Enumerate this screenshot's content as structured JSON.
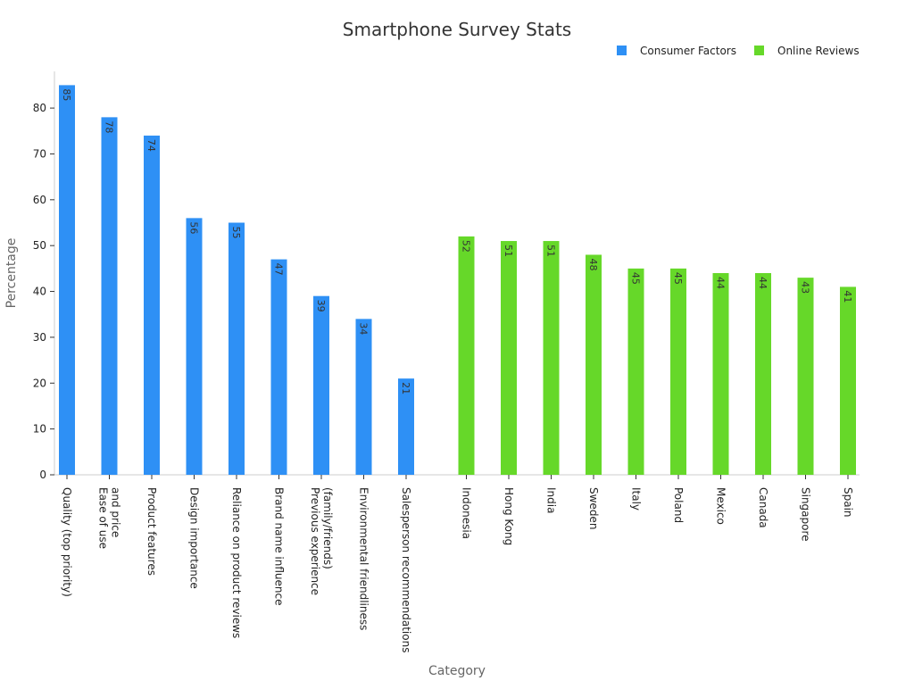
{
  "chart_data": {
    "type": "bar",
    "title": "Smartphone Survey Stats",
    "xlabel": "Category",
    "ylabel": "Percentage",
    "ylim": [
      0,
      88
    ],
    "yticks": [
      0,
      10,
      20,
      30,
      40,
      50,
      60,
      70,
      80
    ],
    "grid": false,
    "legend_position": "top-right",
    "series": [
      {
        "name": "Consumer Factors",
        "color": "#2e90f5",
        "points": [
          {
            "category": [
              "Quality (top priority)"
            ],
            "value": 85
          },
          {
            "category": [
              "Ease of use",
              "and price"
            ],
            "value": 78
          },
          {
            "category": [
              "Product features"
            ],
            "value": 74
          },
          {
            "category": [
              "Design importance"
            ],
            "value": 56
          },
          {
            "category": [
              "Reliance on product reviews"
            ],
            "value": 55
          },
          {
            "category": [
              "Brand name influence"
            ],
            "value": 47
          },
          {
            "category": [
              "Previous experience",
              "(family/friends)"
            ],
            "value": 39
          },
          {
            "category": [
              "Environmental friendliness"
            ],
            "value": 34
          },
          {
            "category": [
              "Salesperson recommendations"
            ],
            "value": 21
          }
        ]
      },
      {
        "name": "Online Reviews",
        "color": "#66d829",
        "points": [
          {
            "category": [
              "Indonesia"
            ],
            "value": 52
          },
          {
            "category": [
              "Hong Kong"
            ],
            "value": 51
          },
          {
            "category": [
              "India"
            ],
            "value": 51
          },
          {
            "category": [
              "Sweden"
            ],
            "value": 48
          },
          {
            "category": [
              "Italy"
            ],
            "value": 45
          },
          {
            "category": [
              "Poland"
            ],
            "value": 45
          },
          {
            "category": [
              "Mexico"
            ],
            "value": 44
          },
          {
            "category": [
              "Canada"
            ],
            "value": 44
          },
          {
            "category": [
              "Singapore"
            ],
            "value": 43
          },
          {
            "category": [
              "Spain"
            ],
            "value": 41
          }
        ]
      }
    ]
  }
}
